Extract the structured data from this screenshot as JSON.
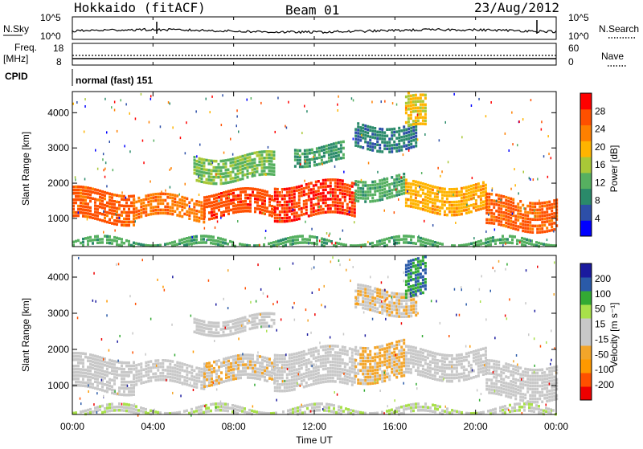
{
  "header": {
    "station": "Hokkaido (fitACF)",
    "beam": "Beam 01",
    "date": "23/Aug/2012"
  },
  "top_panels": {
    "nsky_label": "N.Sky",
    "nsky_ticks": [
      "10^5",
      "10^0"
    ],
    "nsearch_label": "N.Search",
    "nsearch_ticks": [
      "10^5",
      "10^0"
    ],
    "freq_label_line1": "Freq.",
    "freq_label_line2": "[MHz]",
    "freq_ticks": [
      "18",
      "8"
    ],
    "nave_label": "Nave",
    "nave_ticks": [
      "60",
      "0"
    ],
    "cpid_label": "CPID",
    "cpid_value": "normal (fast) 151"
  },
  "colors": {
    "power_scale": [
      "#0000ff",
      "#2d4fa8",
      "#2a8a6a",
      "#56b060",
      "#a9c837",
      "#ffb400",
      "#ff8000",
      "#ff5000",
      "#ff0000"
    ],
    "velocity_scale": [
      "#ee0000",
      "#ff5000",
      "#ff9900",
      "#f3a52a",
      "#c8c8c8",
      "#c8c8c8",
      "#a8e04a",
      "#33aa33",
      "#2a5aa8",
      "#1a1a9e"
    ],
    "frame": "#000000"
  },
  "chart_data": [
    {
      "type": "heatmap",
      "name": "power",
      "ylabel": "Slant Range [km]",
      "yticks": [
        "4000",
        "3000",
        "2000",
        "1000"
      ],
      "ylim": [
        200,
        4600
      ],
      "xlim": [
        0,
        24
      ],
      "colorbar_label": "Power [dB]",
      "colorbar_ticks": [
        "28",
        "24",
        "20",
        "16",
        "12",
        "8",
        "4"
      ],
      "colorbar_range": [
        0,
        32
      ],
      "echo_bands": [
        {
          "t0": 0.0,
          "t1": 3.0,
          "r0": 900,
          "r1": 1800,
          "level": 26
        },
        {
          "t0": 3.0,
          "t1": 6.5,
          "r0": 1000,
          "r1": 1600,
          "level": 24
        },
        {
          "t0": 6.5,
          "t1": 10.0,
          "r0": 1050,
          "r1": 1750,
          "level": 27
        },
        {
          "t0": 10.0,
          "t1": 14.0,
          "r0": 1000,
          "r1": 2000,
          "level": 28
        },
        {
          "t0": 14.0,
          "t1": 16.5,
          "r0": 1600,
          "r1": 2200,
          "level": 12
        },
        {
          "t0": 16.5,
          "t1": 20.5,
          "r0": 1200,
          "r1": 2000,
          "level": 20
        },
        {
          "t0": 20.5,
          "t1": 24.0,
          "r0": 700,
          "r1": 1600,
          "level": 26
        },
        {
          "t0": 6.0,
          "t1": 10.0,
          "r0": 2100,
          "r1": 2800,
          "level": 14
        },
        {
          "t0": 11.0,
          "t1": 13.5,
          "r0": 2600,
          "r1": 3100,
          "level": 10
        },
        {
          "t0": 14.0,
          "t1": 17.0,
          "r0": 3000,
          "r1": 3700,
          "level": 8
        },
        {
          "t0": 16.5,
          "t1": 17.5,
          "r0": 3500,
          "r1": 4500,
          "level": 18
        },
        {
          "t0": 0.0,
          "t1": 24.0,
          "r0": 200,
          "r1": 400,
          "level": 12
        }
      ]
    },
    {
      "type": "heatmap",
      "name": "velocity",
      "ylabel": "Slant Range [km]",
      "yticks": [
        "4000",
        "3000",
        "2000",
        "1000"
      ],
      "ylim": [
        200,
        4600
      ],
      "xlim": [
        0,
        24
      ],
      "xticks": [
        "00:00",
        "04:00",
        "08:00",
        "12:00",
        "16:00",
        "20:00",
        "00:00"
      ],
      "xlabel": "Time UT",
      "colorbar_label": "Velocity [m s⁻¹]",
      "colorbar_ticks": [
        "200",
        "100",
        "50",
        "15",
        "-15",
        "-50",
        "-100",
        "-200"
      ],
      "colorbar_range": [
        -250,
        250
      ],
      "echo_bands": [
        {
          "t0": 0.0,
          "t1": 3.0,
          "r0": 900,
          "r1": 1800,
          "level": 0
        },
        {
          "t0": 3.0,
          "t1": 6.5,
          "r0": 1000,
          "r1": 1600,
          "level": 0
        },
        {
          "t0": 6.5,
          "t1": 10.0,
          "r0": 1050,
          "r1": 1750,
          "level": -40
        },
        {
          "t0": 10.0,
          "t1": 14.0,
          "r0": 1000,
          "r1": 2000,
          "level": 0
        },
        {
          "t0": 14.0,
          "t1": 16.5,
          "r0": 1200,
          "r1": 2200,
          "level": -60
        },
        {
          "t0": 16.5,
          "t1": 20.5,
          "r0": 1200,
          "r1": 2000,
          "level": 0
        },
        {
          "t0": 20.5,
          "t1": 24.0,
          "r0": 700,
          "r1": 1600,
          "level": 0
        },
        {
          "t0": 6.0,
          "t1": 10.0,
          "r0": 2500,
          "r1": 2900,
          "level": 0
        },
        {
          "t0": 14.0,
          "t1": 17.0,
          "r0": 3000,
          "r1": 3700,
          "level": -40
        },
        {
          "t0": 16.5,
          "t1": 17.5,
          "r0": 3500,
          "r1": 4500,
          "level": 150
        },
        {
          "t0": 0.0,
          "t1": 24.0,
          "r0": 200,
          "r1": 400,
          "level": 40
        }
      ]
    }
  ]
}
